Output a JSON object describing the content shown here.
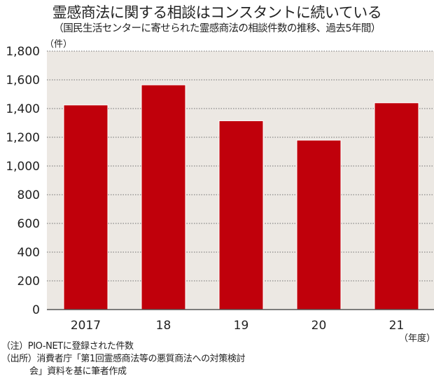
{
  "title": "霊感商法に関する相談はコンスタントに続いている",
  "subtitle": "（国民生活センターに寄せられた霊感商法の相談件数の推移、過去5年間）",
  "notes": [
    "（注）PIO-NETに登録された件数",
    "（出所）消費者庁「第1回霊感商法等の悪質商法への対策検討",
    "会」資料を基に筆者作成"
  ],
  "chart_data": {
    "type": "bar",
    "categories": [
      "2017",
      "18",
      "19",
      "20",
      "21"
    ],
    "values": [
      1425,
      1565,
      1315,
      1180,
      1440
    ],
    "ylabel": "（件）",
    "xlabel": "（年度）",
    "ylim": [
      0,
      1800
    ],
    "yticks": [
      0,
      200,
      400,
      600,
      800,
      1000,
      1200,
      1400,
      1600,
      1800
    ],
    "ytick_labels": [
      "0",
      "200",
      "400",
      "600",
      "800",
      "1,000",
      "1,200",
      "1,400",
      "1,600",
      "1,800"
    ],
    "grid": true,
    "colors": {
      "bar": "#c0000b",
      "plot_background": "#ece8e3",
      "grid": "#888888"
    }
  }
}
